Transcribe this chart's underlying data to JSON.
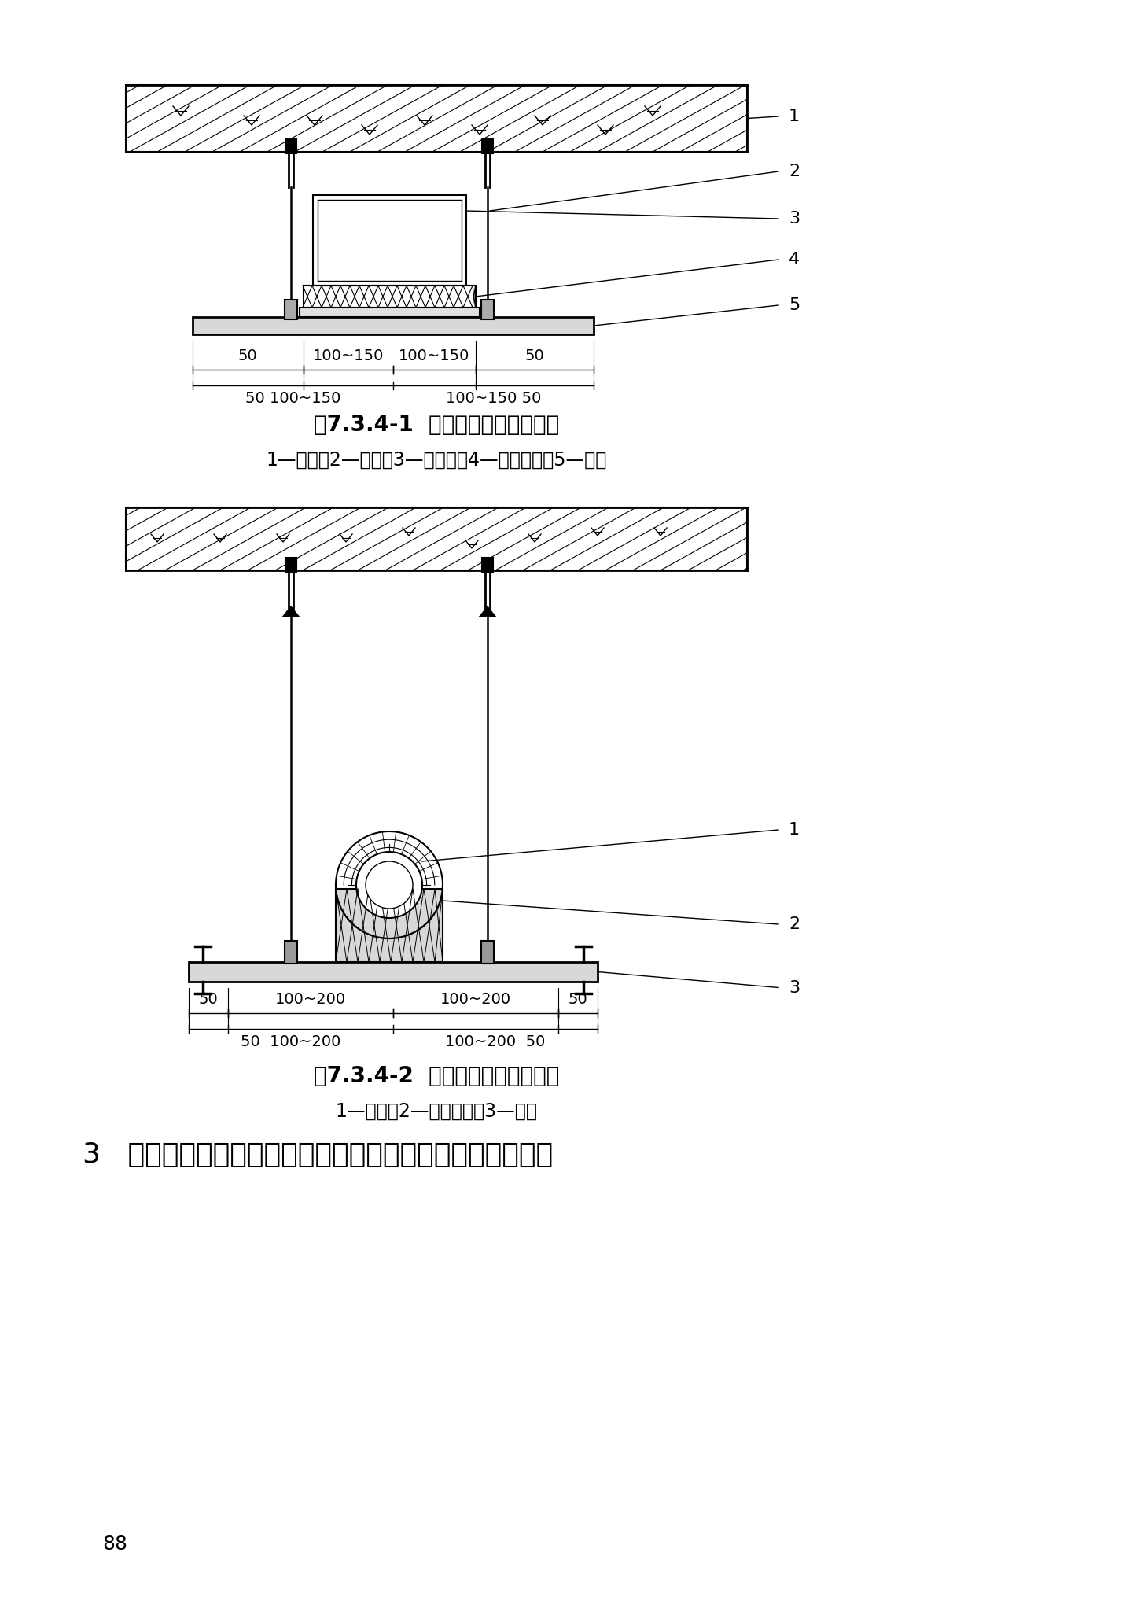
{
  "bg_color": "#ffffff",
  "line_color": "#000000",
  "fig1_title": "图7.3.4-1  风管横担预留长度示意",
  "fig1_caption": "1—楼板；2—风管；3—保温层；4—隔热木托；5—横担",
  "fig2_title": "图7.3.4-2  水管横担预留长度示意",
  "fig2_caption": "1—水管；2—隔热木托；3—横担",
  "bottom_text": "3   有绝热层的吊环，应按保温厚度计算；采用扁钢或圆钢制",
  "page_number": "88",
  "font_size_title": 20,
  "font_size_caption": 17,
  "font_size_dim": 14,
  "font_size_body": 26,
  "font_size_page": 18,
  "font_size_label": 16
}
